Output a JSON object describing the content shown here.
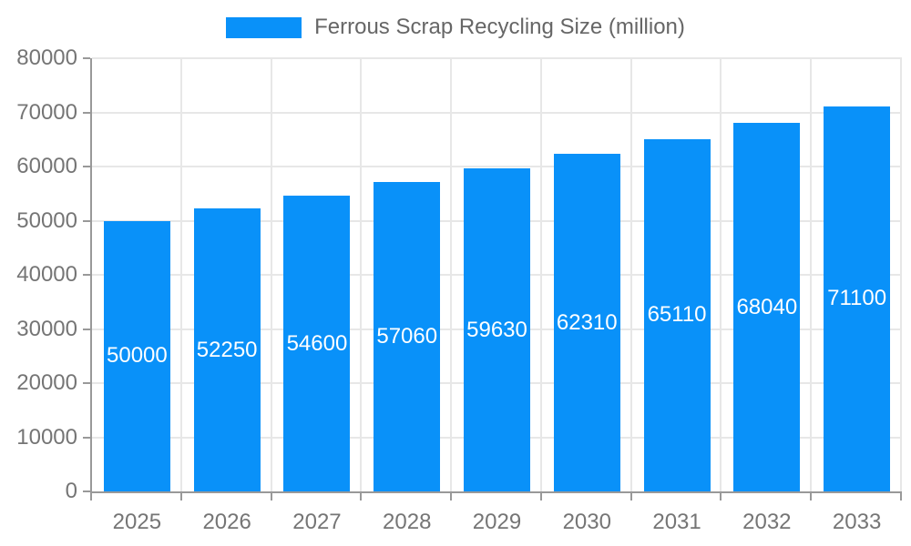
{
  "chart_data": {
    "type": "bar",
    "title": "Ferrous Scrap Recycling Size (million)",
    "categories": [
      "2025",
      "2026",
      "2027",
      "2028",
      "2029",
      "2030",
      "2031",
      "2032",
      "2033"
    ],
    "series": [
      {
        "name": "Ferrous Scrap Recycling Size (million)",
        "values": [
          50000,
          52250,
          54600,
          57060,
          59630,
          62310,
          65110,
          68040,
          71100
        ]
      }
    ],
    "xlabel": "",
    "ylabel": "",
    "ylim": [
      0,
      80000
    ],
    "yticks": [
      0,
      10000,
      20000,
      30000,
      40000,
      50000,
      60000,
      70000,
      80000
    ],
    "grid": true,
    "legend_position": "top",
    "value_label_position": "inside-center",
    "colors": {
      "bar": "#0991f9",
      "bar_label": "#ffffff",
      "axis": "#999999",
      "grid": "#e7e7e7",
      "tick_text": "#757575",
      "legend_text": "#666666",
      "background": "#ffffff"
    }
  }
}
